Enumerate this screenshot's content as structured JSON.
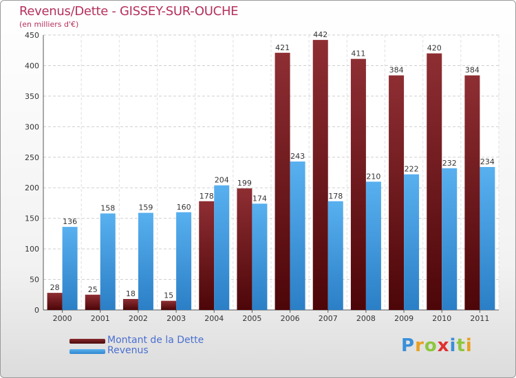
{
  "chart_data": {
    "type": "bar",
    "title": "Revenus/Dette - GISSEY-SUR-OUCHE",
    "subtitle": "(en milliers d'€)",
    "xlabel": "",
    "ylabel": "",
    "ylim": [
      0,
      450
    ],
    "yticks": [
      0,
      50,
      100,
      150,
      200,
      250,
      300,
      350,
      400,
      450
    ],
    "grid": true,
    "categories": [
      "2000",
      "2001",
      "2002",
      "2003",
      "2004",
      "2005",
      "2006",
      "2007",
      "2008",
      "2009",
      "2010",
      "2011"
    ],
    "series": [
      {
        "name": "Montant de la Dette",
        "color": "#7a1c20",
        "values": [
          28,
          25,
          18,
          15,
          178,
          199,
          421,
          442,
          411,
          384,
          420,
          384
        ]
      },
      {
        "name": "Revenus",
        "color": "#4da3e6",
        "values": [
          136,
          158,
          159,
          160,
          204,
          174,
          243,
          178,
          210,
          222,
          232,
          234
        ]
      }
    ]
  },
  "legend": [
    {
      "label": "Montant de la Dette",
      "color": "#7a1c20"
    },
    {
      "label": "Revenus",
      "color": "#4da3e6"
    }
  ],
  "logo": {
    "text": "Proxiti",
    "letter_colors": [
      "#3a8fd8",
      "#e8a020",
      "#8dc63f",
      "#e03030",
      "#3a8fd8",
      "#8dc63f",
      "#e8a020"
    ]
  }
}
